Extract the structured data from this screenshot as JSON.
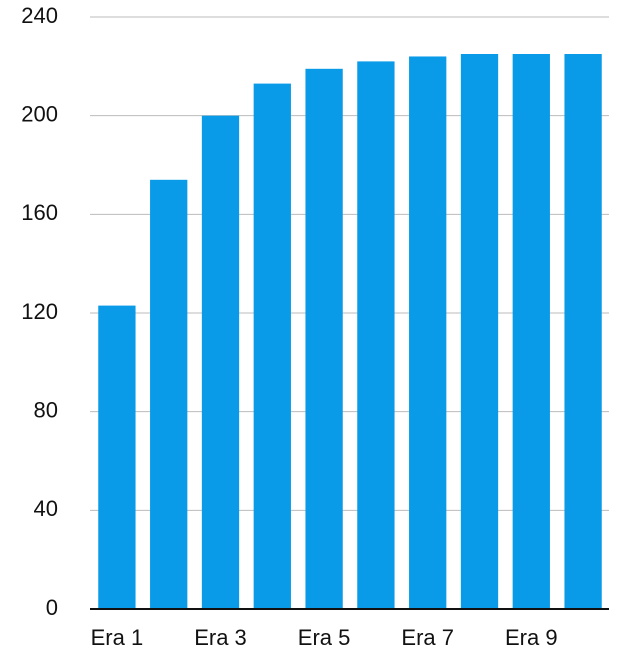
{
  "chart_data": {
    "type": "bar",
    "categories": [
      "Era 1",
      null,
      "Era 3",
      null,
      "Era 5",
      null,
      "Era 7",
      null,
      "Era 9",
      null
    ],
    "values": [
      123,
      174,
      200,
      213,
      219,
      222,
      224,
      225,
      225,
      225
    ],
    "color": "#0a9be8",
    "ylim": [
      0,
      240
    ],
    "yticks": [
      0,
      40,
      80,
      120,
      160,
      200,
      240
    ],
    "grid": true
  }
}
